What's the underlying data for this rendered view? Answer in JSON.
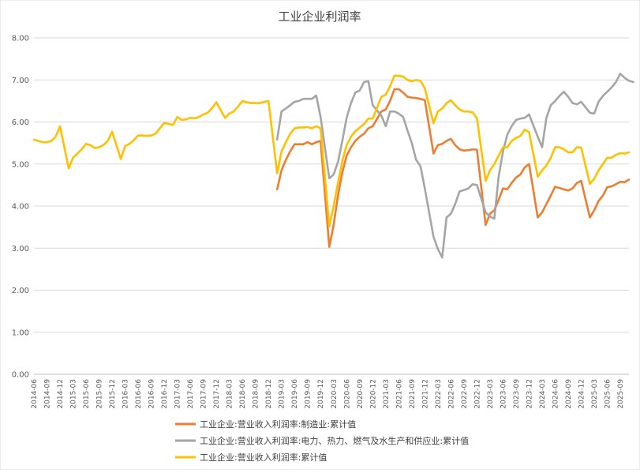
{
  "chart_data": {
    "type": "line",
    "title": "工业企业利润率",
    "xlabel": "",
    "ylabel": "",
    "ylim": [
      0,
      8
    ],
    "y_ticks": [
      "0.00",
      "1.00",
      "2.00",
      "3.00",
      "4.00",
      "5.00",
      "6.00",
      "7.00",
      "8.00"
    ],
    "x_tick_labels": [
      "2014-06",
      "2014-09",
      "2014-12",
      "2015-03",
      "2015-06",
      "2015-09",
      "2015-12",
      "2016-03",
      "2016-06",
      "2016-09",
      "2016-12",
      "2017-03",
      "2017-06",
      "2017-09",
      "2017-12",
      "2018-03",
      "2018-06",
      "2018-09",
      "2018-12",
      "2019-03",
      "2019-06",
      "2019-09",
      "2019-12",
      "2020-03",
      "2020-06",
      "2020-09",
      "2020-12",
      "2021-03",
      "2021-06",
      "2021-09",
      "2021-12",
      "2022-03",
      "2022-06",
      "2022-09",
      "2022-12",
      "2023-03",
      "2023-06",
      "2023-09",
      "2023-12",
      "2024-03",
      "2024-06",
      "2024-09",
      "2024-12",
      "2025-03",
      "2025-06",
      "2025-09"
    ],
    "x_start": "2014-06",
    "x_end": "2025-11",
    "grid": true,
    "legend_position": "bottom-left",
    "series": [
      {
        "name": "工业企业:营业收入利润率:制造业:累计值",
        "color": "#ED7D31",
        "points": [
          [
            "2019-02",
            4.4
          ],
          [
            "2019-03",
            4.85
          ],
          [
            "2019-04",
            5.1
          ],
          [
            "2019-05",
            5.3
          ],
          [
            "2019-06",
            5.47
          ],
          [
            "2019-07",
            5.47
          ],
          [
            "2019-08",
            5.47
          ],
          [
            "2019-09",
            5.52
          ],
          [
            "2019-10",
            5.47
          ],
          [
            "2019-11",
            5.52
          ],
          [
            "2019-12",
            5.55
          ],
          [
            "2020-02",
            3.03
          ],
          [
            "2020-03",
            3.55
          ],
          [
            "2020-04",
            4.25
          ],
          [
            "2020-05",
            4.8
          ],
          [
            "2020-06",
            5.2
          ],
          [
            "2020-07",
            5.4
          ],
          [
            "2020-08",
            5.55
          ],
          [
            "2020-09",
            5.65
          ],
          [
            "2020-10",
            5.72
          ],
          [
            "2020-11",
            5.85
          ],
          [
            "2020-12",
            5.9
          ],
          [
            "2021-02",
            6.25
          ],
          [
            "2021-03",
            6.3
          ],
          [
            "2021-04",
            6.5
          ],
          [
            "2021-05",
            6.78
          ],
          [
            "2021-06",
            6.78
          ],
          [
            "2021-07",
            6.7
          ],
          [
            "2021-08",
            6.6
          ],
          [
            "2021-09",
            6.58
          ],
          [
            "2021-10",
            6.57
          ],
          [
            "2021-11",
            6.55
          ],
          [
            "2021-12",
            6.52
          ],
          [
            "2022-02",
            5.25
          ],
          [
            "2022-03",
            5.45
          ],
          [
            "2022-04",
            5.48
          ],
          [
            "2022-05",
            5.55
          ],
          [
            "2022-06",
            5.6
          ],
          [
            "2022-07",
            5.45
          ],
          [
            "2022-08",
            5.35
          ],
          [
            "2022-09",
            5.32
          ],
          [
            "2022-10",
            5.33
          ],
          [
            "2022-11",
            5.35
          ],
          [
            "2022-12",
            5.34
          ],
          [
            "2023-02",
            3.55
          ],
          [
            "2023-03",
            3.82
          ],
          [
            "2023-04",
            3.9
          ],
          [
            "2023-05",
            4.15
          ],
          [
            "2023-06",
            4.42
          ],
          [
            "2023-07",
            4.4
          ],
          [
            "2023-08",
            4.55
          ],
          [
            "2023-09",
            4.68
          ],
          [
            "2023-10",
            4.75
          ],
          [
            "2023-11",
            4.92
          ],
          [
            "2023-12",
            5.0
          ],
          [
            "2024-02",
            3.73
          ],
          [
            "2024-03",
            3.85
          ],
          [
            "2024-04",
            4.05
          ],
          [
            "2024-05",
            4.25
          ],
          [
            "2024-06",
            4.46
          ],
          [
            "2024-07",
            4.43
          ],
          [
            "2024-08",
            4.4
          ],
          [
            "2024-09",
            4.37
          ],
          [
            "2024-10",
            4.42
          ],
          [
            "2024-11",
            4.55
          ],
          [
            "2024-12",
            4.6
          ],
          [
            "2025-02",
            3.73
          ],
          [
            "2025-03",
            3.9
          ],
          [
            "2025-04",
            4.12
          ],
          [
            "2025-05",
            4.25
          ],
          [
            "2025-06",
            4.45
          ],
          [
            "2025-07",
            4.47
          ],
          [
            "2025-08",
            4.52
          ],
          [
            "2025-09",
            4.58
          ],
          [
            "2025-10",
            4.57
          ],
          [
            "2025-11",
            4.63
          ]
        ]
      },
      {
        "name": "工业企业:营业收入利润率:电力、热力、燃气及水生产和供应业:累计值",
        "color": "#A5A5A5",
        "points": [
          [
            "2019-02",
            5.58
          ],
          [
            "2019-03",
            6.25
          ],
          [
            "2019-04",
            6.32
          ],
          [
            "2019-05",
            6.4
          ],
          [
            "2019-06",
            6.48
          ],
          [
            "2019-07",
            6.5
          ],
          [
            "2019-08",
            6.55
          ],
          [
            "2019-09",
            6.55
          ],
          [
            "2019-10",
            6.55
          ],
          [
            "2019-11",
            6.63
          ],
          [
            "2019-12",
            6.12
          ],
          [
            "2020-02",
            4.66
          ],
          [
            "2020-03",
            4.75
          ],
          [
            "2020-04",
            5.05
          ],
          [
            "2020-05",
            5.55
          ],
          [
            "2020-06",
            6.1
          ],
          [
            "2020-07",
            6.45
          ],
          [
            "2020-08",
            6.7
          ],
          [
            "2020-09",
            6.75
          ],
          [
            "2020-10",
            6.95
          ],
          [
            "2020-11",
            6.97
          ],
          [
            "2020-12",
            6.4
          ],
          [
            "2021-02",
            6.15
          ],
          [
            "2021-03",
            5.9
          ],
          [
            "2021-04",
            6.25
          ],
          [
            "2021-05",
            6.25
          ],
          [
            "2021-06",
            6.2
          ],
          [
            "2021-07",
            6.12
          ],
          [
            "2021-08",
            5.8
          ],
          [
            "2021-09",
            5.5
          ],
          [
            "2021-10",
            5.1
          ],
          [
            "2021-11",
            4.95
          ],
          [
            "2021-12",
            4.42
          ],
          [
            "2022-02",
            3.27
          ],
          [
            "2022-03",
            2.98
          ],
          [
            "2022-04",
            2.78
          ],
          [
            "2022-05",
            3.73
          ],
          [
            "2022-06",
            3.82
          ],
          [
            "2022-07",
            4.05
          ],
          [
            "2022-08",
            4.35
          ],
          [
            "2022-09",
            4.38
          ],
          [
            "2022-10",
            4.42
          ],
          [
            "2022-11",
            4.52
          ],
          [
            "2022-12",
            4.5
          ],
          [
            "2023-02",
            3.85
          ],
          [
            "2023-03",
            3.75
          ],
          [
            "2023-04",
            3.7
          ],
          [
            "2023-05",
            4.7
          ],
          [
            "2023-06",
            5.3
          ],
          [
            "2023-07",
            5.7
          ],
          [
            "2023-08",
            5.9
          ],
          [
            "2023-09",
            6.05
          ],
          [
            "2023-10",
            6.08
          ],
          [
            "2023-11",
            6.1
          ],
          [
            "2023-12",
            6.18
          ],
          [
            "2024-02",
            5.65
          ],
          [
            "2024-03",
            5.4
          ],
          [
            "2024-04",
            6.1
          ],
          [
            "2024-05",
            6.4
          ],
          [
            "2024-06",
            6.5
          ],
          [
            "2024-07",
            6.62
          ],
          [
            "2024-08",
            6.72
          ],
          [
            "2024-09",
            6.6
          ],
          [
            "2024-10",
            6.45
          ],
          [
            "2024-11",
            6.42
          ],
          [
            "2024-12",
            6.48
          ],
          [
            "2025-02",
            6.22
          ],
          [
            "2025-03",
            6.2
          ],
          [
            "2025-04",
            6.48
          ],
          [
            "2025-05",
            6.62
          ],
          [
            "2025-06",
            6.72
          ],
          [
            "2025-07",
            6.82
          ],
          [
            "2025-08",
            6.95
          ],
          [
            "2025-09",
            7.15
          ],
          [
            "2025-10",
            7.05
          ],
          [
            "2025-11",
            6.98
          ],
          [
            "2025-12",
            6.95
          ]
        ]
      },
      {
        "name": "工业企业:营业收入利润率:累计值",
        "color": "#FFC000",
        "points": [
          [
            "2014-06",
            5.58
          ],
          [
            "2014-07",
            5.55
          ],
          [
            "2014-08",
            5.52
          ],
          [
            "2014-09",
            5.52
          ],
          [
            "2014-10",
            5.55
          ],
          [
            "2014-11",
            5.65
          ],
          [
            "2014-12",
            5.9
          ],
          [
            "2015-02",
            4.9
          ],
          [
            "2015-03",
            5.15
          ],
          [
            "2015-04",
            5.25
          ],
          [
            "2015-05",
            5.35
          ],
          [
            "2015-06",
            5.48
          ],
          [
            "2015-07",
            5.45
          ],
          [
            "2015-08",
            5.38
          ],
          [
            "2015-09",
            5.4
          ],
          [
            "2015-10",
            5.45
          ],
          [
            "2015-11",
            5.55
          ],
          [
            "2015-12",
            5.77
          ],
          [
            "2016-02",
            5.12
          ],
          [
            "2016-03",
            5.43
          ],
          [
            "2016-04",
            5.48
          ],
          [
            "2016-05",
            5.57
          ],
          [
            "2016-06",
            5.68
          ],
          [
            "2016-07",
            5.68
          ],
          [
            "2016-08",
            5.67
          ],
          [
            "2016-09",
            5.68
          ],
          [
            "2016-10",
            5.72
          ],
          [
            "2016-11",
            5.85
          ],
          [
            "2016-12",
            5.98
          ],
          [
            "2017-02",
            5.93
          ],
          [
            "2017-03",
            6.12
          ],
          [
            "2017-04",
            6.05
          ],
          [
            "2017-05",
            6.06
          ],
          [
            "2017-06",
            6.1
          ],
          [
            "2017-07",
            6.09
          ],
          [
            "2017-08",
            6.12
          ],
          [
            "2017-09",
            6.18
          ],
          [
            "2017-10",
            6.22
          ],
          [
            "2017-11",
            6.33
          ],
          [
            "2017-12",
            6.47
          ],
          [
            "2018-02",
            6.1
          ],
          [
            "2018-03",
            6.2
          ],
          [
            "2018-04",
            6.25
          ],
          [
            "2018-05",
            6.37
          ],
          [
            "2018-06",
            6.5
          ],
          [
            "2018-07",
            6.47
          ],
          [
            "2018-08",
            6.45
          ],
          [
            "2018-09",
            6.45
          ],
          [
            "2018-10",
            6.45
          ],
          [
            "2018-11",
            6.48
          ],
          [
            "2018-12",
            6.5
          ],
          [
            "2019-02",
            4.78
          ],
          [
            "2019-03",
            5.3
          ],
          [
            "2019-04",
            5.52
          ],
          [
            "2019-05",
            5.72
          ],
          [
            "2019-06",
            5.85
          ],
          [
            "2019-07",
            5.87
          ],
          [
            "2019-08",
            5.87
          ],
          [
            "2019-09",
            5.88
          ],
          [
            "2019-10",
            5.85
          ],
          [
            "2019-11",
            5.9
          ],
          [
            "2019-12",
            5.85
          ],
          [
            "2020-02",
            3.52
          ],
          [
            "2020-03",
            4.0
          ],
          [
            "2020-04",
            4.55
          ],
          [
            "2020-05",
            5.07
          ],
          [
            "2020-06",
            5.45
          ],
          [
            "2020-07",
            5.65
          ],
          [
            "2020-08",
            5.78
          ],
          [
            "2020-09",
            5.87
          ],
          [
            "2020-10",
            5.95
          ],
          [
            "2020-11",
            6.08
          ],
          [
            "2020-12",
            6.08
          ],
          [
            "2021-02",
            6.6
          ],
          [
            "2021-03",
            6.65
          ],
          [
            "2021-04",
            6.85
          ],
          [
            "2021-05",
            7.1
          ],
          [
            "2021-06",
            7.1
          ],
          [
            "2021-07",
            7.08
          ],
          [
            "2021-08",
            7.0
          ],
          [
            "2021-09",
            6.97
          ],
          [
            "2021-10",
            7.0
          ],
          [
            "2021-11",
            6.98
          ],
          [
            "2021-12",
            6.8
          ],
          [
            "2022-02",
            5.97
          ],
          [
            "2022-03",
            6.25
          ],
          [
            "2022-04",
            6.32
          ],
          [
            "2022-05",
            6.45
          ],
          [
            "2022-06",
            6.52
          ],
          [
            "2022-07",
            6.4
          ],
          [
            "2022-08",
            6.3
          ],
          [
            "2022-09",
            6.25
          ],
          [
            "2022-10",
            6.25
          ],
          [
            "2022-11",
            6.23
          ],
          [
            "2022-12",
            6.09
          ],
          [
            "2023-02",
            4.6
          ],
          [
            "2023-03",
            4.85
          ],
          [
            "2023-04",
            5.0
          ],
          [
            "2023-05",
            5.2
          ],
          [
            "2023-06",
            5.4
          ],
          [
            "2023-07",
            5.4
          ],
          [
            "2023-08",
            5.55
          ],
          [
            "2023-09",
            5.62
          ],
          [
            "2023-10",
            5.67
          ],
          [
            "2023-11",
            5.82
          ],
          [
            "2023-12",
            5.76
          ],
          [
            "2024-02",
            4.7
          ],
          [
            "2024-03",
            4.85
          ],
          [
            "2024-04",
            4.97
          ],
          [
            "2024-05",
            5.15
          ],
          [
            "2024-06",
            5.4
          ],
          [
            "2024-07",
            5.4
          ],
          [
            "2024-08",
            5.35
          ],
          [
            "2024-09",
            5.28
          ],
          [
            "2024-10",
            5.28
          ],
          [
            "2024-11",
            5.4
          ],
          [
            "2024-12",
            5.39
          ],
          [
            "2025-02",
            4.53
          ],
          [
            "2025-03",
            4.65
          ],
          [
            "2025-04",
            4.85
          ],
          [
            "2025-05",
            5.0
          ],
          [
            "2025-06",
            5.15
          ],
          [
            "2025-07",
            5.15
          ],
          [
            "2025-08",
            5.22
          ],
          [
            "2025-09",
            5.26
          ],
          [
            "2025-10",
            5.25
          ],
          [
            "2025-11",
            5.28
          ]
        ]
      }
    ]
  }
}
